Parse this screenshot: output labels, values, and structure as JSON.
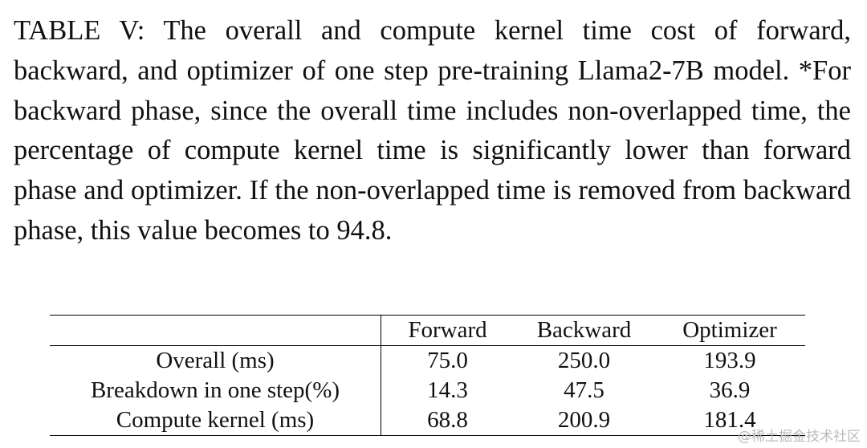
{
  "caption": "TABLE V: The overall and compute kernel time cost of forward, backward, and optimizer of one step pre-training Llama2-7B model. *For backward phase, since the overall time includes non-overlapped time, the percentage of compute kernel time is significantly lower than forward phase and optimizer. If the non-overlapped time is removed from backward phase, this value becomes to 94.8.",
  "table": {
    "header": [
      "Forward",
      "Backward",
      "Optimizer"
    ],
    "rows": [
      [
        "Overall (ms)",
        "75.0",
        "250.0",
        "193.9"
      ],
      [
        "Breakdown in one step(%)",
        "14.3",
        "47.5",
        "36.9"
      ],
      [
        "Compute kernel (ms)",
        "68.8",
        "200.9",
        "181.4"
      ]
    ]
  },
  "watermark": "@稀土掘金技术社区"
}
